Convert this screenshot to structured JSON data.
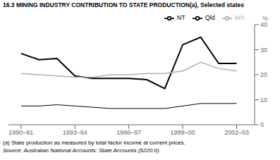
{
  "chart_data": {
    "type": "line",
    "title": "16.3  MINING INDUSTRY CONTRIBUTION TO STATE PRODUCTION(a), Selected states",
    "ylabel": "%",
    "annotations": [
      "(a) State production as measured by total factor income at current prices.",
      "Source: Australian National Accounts: State Accounts (5220.0)."
    ],
    "x": [
      1990.5,
      1991.5,
      1992.5,
      1993.5,
      1994.5,
      1995.5,
      1996.5,
      1997.5,
      1998.5,
      1999.5,
      2000.5,
      2001.5,
      2002.5
    ],
    "series": [
      {
        "name": "NT",
        "color": "#000000",
        "values": [
          28.5,
          26.0,
          26.5,
          19.5,
          18.5,
          18.5,
          18.5,
          18.0,
          14.5,
          32.0,
          35.0,
          24.5,
          24.5
        ]
      },
      {
        "name": "Qld",
        "color": "#000000",
        "values": [
          7.5,
          7.5,
          8.0,
          7.5,
          7.0,
          6.5,
          6.5,
          6.5,
          6.5,
          7.5,
          8.5,
          8.5,
          8.5
        ]
      },
      {
        "name": "WA",
        "color": "#b0b0b0",
        "values": [
          20.5,
          20.0,
          19.5,
          19.0,
          19.0,
          20.0,
          20.0,
          20.5,
          20.5,
          21.5,
          25.0,
          22.5,
          21.5
        ]
      }
    ],
    "xlim": [
      1989.8,
      2003.5
    ],
    "xticks": [
      {
        "value": 1990.5,
        "label": "1990–91"
      },
      {
        "value": 1993.5,
        "label": "1993–94"
      },
      {
        "value": 1996.5,
        "label": "1996–97"
      },
      {
        "value": 1999.5,
        "label": "1999–00"
      },
      {
        "value": 2002.5,
        "label": "2002–03"
      }
    ],
    "ylim": [
      0,
      40
    ],
    "yticks": [
      0,
      10,
      20,
      30,
      40
    ],
    "grid": false,
    "legend": "upper right"
  }
}
